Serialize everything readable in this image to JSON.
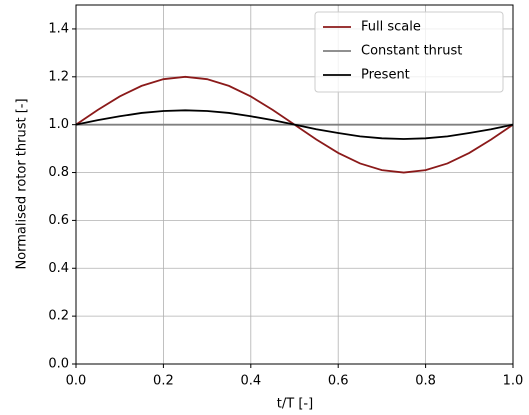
{
  "chart_data": {
    "type": "line",
    "xlabel": "t/T [-]",
    "ylabel": "Normalised rotor thrust [-]",
    "x": [
      0,
      0.05,
      0.1,
      0.15,
      0.2,
      0.25,
      0.3,
      0.35,
      0.4,
      0.45,
      0.5,
      0.55,
      0.6,
      0.65,
      0.7,
      0.75,
      0.8,
      0.85,
      0.9,
      0.95,
      1
    ],
    "series": [
      {
        "name": "Full scale",
        "color": "#8b1a1a",
        "values": [
          1,
          1.062,
          1.118,
          1.162,
          1.19,
          1.2,
          1.19,
          1.162,
          1.118,
          1.062,
          1,
          0.938,
          0.882,
          0.838,
          0.81,
          0.8,
          0.81,
          0.838,
          0.882,
          0.938,
          1
        ]
      },
      {
        "name": "Constant thrust",
        "color": "#808080",
        "values": [
          1,
          1,
          1,
          1,
          1,
          1,
          1,
          1,
          1,
          1,
          1,
          1,
          1,
          1,
          1,
          1,
          1,
          1,
          1,
          1,
          1
        ]
      },
      {
        "name": "Present",
        "color": "#000000",
        "values": [
          1,
          1.019,
          1.035,
          1.049,
          1.057,
          1.06,
          1.057,
          1.049,
          1.035,
          1.019,
          1,
          0.981,
          0.965,
          0.951,
          0.943,
          0.94,
          0.943,
          0.951,
          0.965,
          0.981,
          1
        ]
      }
    ],
    "xlim": [
      0,
      1
    ],
    "ylim": [
      0,
      1.5
    ],
    "xticks": [
      {
        "value": 0,
        "label": "0.0"
      },
      0.2,
      0.4,
      0.6,
      0.8,
      {
        "value": 1,
        "label": "1.0"
      }
    ],
    "yticks": [
      {
        "value": 0,
        "label": "0.0"
      },
      0.2,
      0.4,
      0.6,
      0.8,
      {
        "value": 1,
        "label": "1.0"
      },
      1.2,
      1.4
    ],
    "grid": true,
    "legend": "upper right"
  }
}
